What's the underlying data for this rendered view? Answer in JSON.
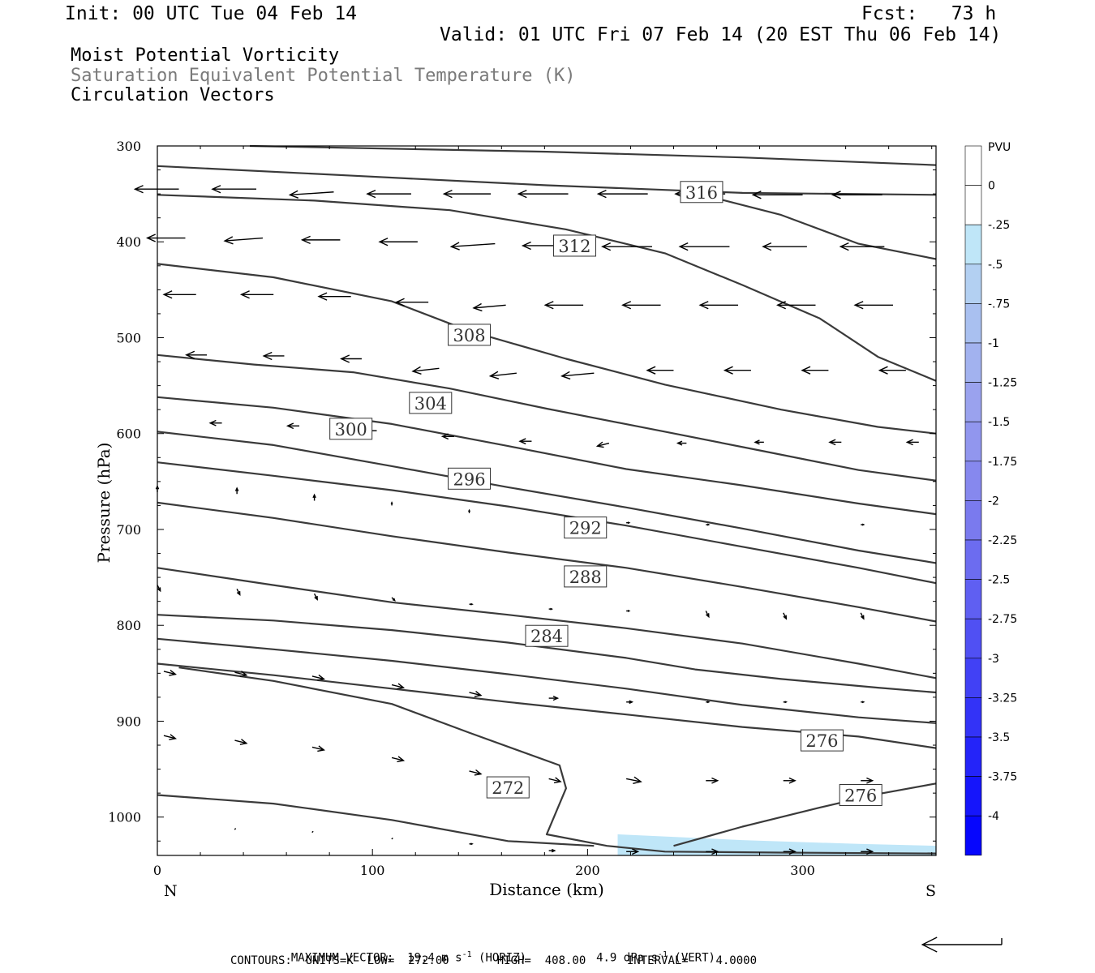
{
  "header": {
    "init": "Init: 00 UTC Tue 04 Feb 14",
    "fcst": "Fcst:   73 h",
    "valid": "Valid: 01 UTC Fri 07 Feb 14 (20 EST Thu 06 Feb 14)",
    "field1": "Moist Potential Vorticity",
    "field2": "Saturation Equivalent Potential Temperature (K)",
    "field3": "Circulation Vectors"
  },
  "footer": {
    "line1_a": "MAXIMUM VECTOR:  19.4 m s",
    "line1_a_sup": "-1",
    "line1_b": " (HORIZ)",
    "line1_c": "4.9 dPa s",
    "line1_c_sup": "-1",
    "line1_d": " (VERT)",
    "line2": "CONTOURS:  UNITS=K  LOW=  272.00       HIGH=  408.00      INTERVAL=    4.0000"
  },
  "chart_data": {
    "type": "contour",
    "xlabel": "Distance (km)",
    "ylabel": "Pressure (hPa)",
    "xlim": [
      0,
      362
    ],
    "ylim": [
      300,
      1040
    ],
    "x_ticks": [
      0,
      100,
      200,
      300
    ],
    "y_ticks": [
      300,
      400,
      500,
      600,
      700,
      800,
      900,
      1000
    ],
    "x_end_labels": {
      "left": "N",
      "right": "S"
    },
    "colorbar": {
      "title": "PVU",
      "labels": [
        "0",
        "-.25",
        "-.5",
        "-.75",
        "-1",
        "-1.25",
        "-1.5",
        "-1.75",
        "-2",
        "-2.25",
        "-2.5",
        "-2.75",
        "-3",
        "-3.25",
        "-3.5",
        "-3.75",
        "-4"
      ],
      "colors": [
        "#ffffff",
        "#ffffff",
        "#bfe6f8",
        "#b3d0f2",
        "#a9c0f0",
        "#a2b2ef",
        "#9aa2ee",
        "#9196ee",
        "#8688ee",
        "#7a7aee",
        "#6c6cf0",
        "#5f5ff2",
        "#5050f3",
        "#4141f5",
        "#3333f7",
        "#2424f9",
        "#1515fb",
        "#0606fd"
      ]
    },
    "contour_labels": [
      {
        "text": "316",
        "x": 253,
        "p": 348
      },
      {
        "text": "312",
        "x": 194,
        "p": 404
      },
      {
        "text": "308",
        "x": 145,
        "p": 497
      },
      {
        "text": "304",
        "x": 127,
        "p": 568
      },
      {
        "text": "300",
        "x": 90,
        "p": 595
      },
      {
        "text": "296",
        "x": 145,
        "p": 647
      },
      {
        "text": "292",
        "x": 199,
        "p": 698
      },
      {
        "text": "288",
        "x": 199,
        "p": 749
      },
      {
        "text": "284",
        "x": 181,
        "p": 811
      },
      {
        "text": "276",
        "x": 309,
        "p": 920
      },
      {
        "text": "272",
        "x": 163,
        "p": 969
      },
      {
        "text": "276",
        "x": 327,
        "p": 977
      }
    ],
    "contours": [
      [
        [
          43,
          300
        ],
        [
          181,
          306
        ],
        [
          272,
          312
        ],
        [
          362,
          320
        ]
      ],
      [
        [
          0,
          321
        ],
        [
          91,
          331
        ],
        [
          181,
          341
        ],
        [
          272,
          349
        ],
        [
          362,
          351
        ]
      ],
      [
        [
          0,
          351
        ],
        [
          73,
          357
        ],
        [
          136,
          367
        ],
        [
          190,
          387
        ],
        [
          236,
          412
        ],
        [
          272,
          445
        ],
        [
          308,
          480
        ],
        [
          335,
          520
        ],
        [
          362,
          545
        ]
      ],
      [
        [
          250,
          349
        ],
        [
          290,
          372
        ],
        [
          326,
          402
        ],
        [
          362,
          418
        ]
      ],
      [
        [
          0,
          423
        ],
        [
          54,
          437
        ],
        [
          109,
          462
        ],
        [
          145,
          493
        ],
        [
          190,
          522
        ],
        [
          236,
          549
        ],
        [
          290,
          575
        ],
        [
          335,
          593
        ],
        [
          362,
          600
        ]
      ],
      [
        [
          0,
          518
        ],
        [
          45,
          528
        ],
        [
          91,
          536
        ],
        [
          136,
          553
        ],
        [
          181,
          574
        ],
        [
          236,
          598
        ],
        [
          281,
          618
        ],
        [
          326,
          638
        ],
        [
          362,
          649
        ]
      ],
      [
        [
          0,
          562
        ],
        [
          54,
          573
        ],
        [
          109,
          590
        ],
        [
          163,
          613
        ],
        [
          218,
          637
        ],
        [
          272,
          654
        ],
        [
          326,
          673
        ],
        [
          362,
          684
        ]
      ],
      [
        [
          0,
          598
        ],
        [
          54,
          612
        ],
        [
          109,
          634
        ],
        [
          163,
          656
        ],
        [
          218,
          677
        ],
        [
          272,
          699
        ],
        [
          326,
          722
        ],
        [
          362,
          735
        ]
      ],
      [
        [
          0,
          630
        ],
        [
          54,
          644
        ],
        [
          109,
          659
        ],
        [
          163,
          676
        ],
        [
          218,
          696
        ],
        [
          272,
          718
        ],
        [
          326,
          740
        ],
        [
          362,
          756
        ]
      ],
      [
        [
          0,
          672
        ],
        [
          54,
          688
        ],
        [
          109,
          707
        ],
        [
          163,
          724
        ],
        [
          218,
          740
        ],
        [
          272,
          760
        ],
        [
          326,
          781
        ],
        [
          362,
          796
        ]
      ],
      [
        [
          0,
          740
        ],
        [
          54,
          758
        ],
        [
          109,
          776
        ],
        [
          163,
          789
        ],
        [
          218,
          803
        ],
        [
          272,
          819
        ],
        [
          326,
          840
        ],
        [
          362,
          855
        ]
      ],
      [
        [
          0,
          789
        ],
        [
          54,
          795
        ],
        [
          109,
          805
        ],
        [
          163,
          818
        ],
        [
          218,
          834
        ],
        [
          250,
          846
        ],
        [
          290,
          856
        ],
        [
          335,
          865
        ],
        [
          362,
          870
        ]
      ],
      [
        [
          0,
          814
        ],
        [
          54,
          825
        ],
        [
          109,
          837
        ],
        [
          163,
          851
        ],
        [
          218,
          866
        ],
        [
          272,
          883
        ],
        [
          326,
          896
        ],
        [
          362,
          902
        ]
      ],
      [
        [
          0,
          840
        ],
        [
          54,
          852
        ],
        [
          109,
          866
        ],
        [
          163,
          880
        ],
        [
          218,
          893
        ],
        [
          272,
          906
        ],
        [
          326,
          916
        ],
        [
          362,
          928
        ]
      ],
      [
        [
          10,
          844
        ],
        [
          54,
          858
        ],
        [
          109,
          882
        ],
        [
          145,
          912
        ],
        [
          187,
          946
        ],
        [
          190,
          970
        ],
        [
          181,
          1018
        ],
        [
          209,
          1030
        ],
        [
          236,
          1036
        ],
        [
          290,
          1037
        ],
        [
          362,
          1038
        ]
      ],
      [
        [
          0,
          977
        ],
        [
          54,
          986
        ],
        [
          109,
          1003
        ],
        [
          163,
          1025
        ],
        [
          203,
          1030
        ]
      ],
      [
        [
          240,
          1030
        ],
        [
          272,
          1010
        ],
        [
          308,
          990
        ],
        [
          335,
          976
        ],
        [
          362,
          965
        ]
      ]
    ],
    "pv_region": [
      [
        214,
        1018
      ],
      [
        272,
        1024
      ],
      [
        326,
        1028
      ],
      [
        362,
        1030
      ],
      [
        362,
        1040
      ],
      [
        214,
        1040
      ]
    ],
    "vectors": [
      {
        "x": 10,
        "p": 345,
        "u": -15,
        "w": 0
      },
      {
        "x": 46,
        "p": 345,
        "u": -15,
        "w": 0
      },
      {
        "x": 82,
        "p": 348,
        "u": -15,
        "w": 1
      },
      {
        "x": 118,
        "p": 350,
        "u": -15,
        "w": 0
      },
      {
        "x": 155,
        "p": 350,
        "u": -16,
        "w": 0
      },
      {
        "x": 191,
        "p": 350,
        "u": -17,
        "w": 0
      },
      {
        "x": 228,
        "p": 350,
        "u": -17,
        "w": 0
      },
      {
        "x": 264,
        "p": 350,
        "u": -17,
        "w": 0
      },
      {
        "x": 300,
        "p": 351,
        "u": -17,
        "w": 0
      },
      {
        "x": 337,
        "p": 351,
        "u": -17,
        "w": 0
      },
      {
        "x": 13,
        "p": 396,
        "u": -13,
        "w": 0
      },
      {
        "x": 49,
        "p": 396,
        "u": -13,
        "w": 1
      },
      {
        "x": 85,
        "p": 398,
        "u": -13,
        "w": 0
      },
      {
        "x": 121,
        "p": 400,
        "u": -13,
        "w": 0
      },
      {
        "x": 157,
        "p": 402,
        "u": -15,
        "w": 1
      },
      {
        "x": 193,
        "p": 404,
        "u": -17,
        "w": 0
      },
      {
        "x": 230,
        "p": 405,
        "u": -17,
        "w": 0
      },
      {
        "x": 266,
        "p": 405,
        "u": -17,
        "w": 0
      },
      {
        "x": 302,
        "p": 405,
        "u": -15,
        "w": 0
      },
      {
        "x": 338,
        "p": 405,
        "u": -15,
        "w": 0
      },
      {
        "x": 18,
        "p": 455,
        "u": -11,
        "w": 0
      },
      {
        "x": 54,
        "p": 455,
        "u": -11,
        "w": 0
      },
      {
        "x": 90,
        "p": 457,
        "u": -11,
        "w": 0
      },
      {
        "x": 126,
        "p": 463,
        "u": -11,
        "w": 0
      },
      {
        "x": 162,
        "p": 466,
        "u": -11,
        "w": 1
      },
      {
        "x": 198,
        "p": 466,
        "u": -13,
        "w": 0
      },
      {
        "x": 234,
        "p": 466,
        "u": -13,
        "w": 0
      },
      {
        "x": 270,
        "p": 466,
        "u": -13,
        "w": 0
      },
      {
        "x": 306,
        "p": 466,
        "u": -13,
        "w": 0
      },
      {
        "x": 342,
        "p": 466,
        "u": -13,
        "w": 0
      },
      {
        "x": 23,
        "p": 518,
        "u": -7,
        "w": 0
      },
      {
        "x": 59,
        "p": 519,
        "u": -7,
        "w": 0
      },
      {
        "x": 95,
        "p": 522,
        "u": -7,
        "w": 0
      },
      {
        "x": 131,
        "p": 532,
        "u": -9,
        "w": 1
      },
      {
        "x": 167,
        "p": 537,
        "u": -9,
        "w": 1
      },
      {
        "x": 203,
        "p": 537,
        "u": -11,
        "w": 1
      },
      {
        "x": 240,
        "p": 534,
        "u": -9,
        "w": 0
      },
      {
        "x": 276,
        "p": 534,
        "u": -9,
        "w": 0
      },
      {
        "x": 312,
        "p": 534,
        "u": -9,
        "w": 0
      },
      {
        "x": 348,
        "p": 534,
        "u": -9,
        "w": 0
      },
      {
        "x": 30,
        "p": 589,
        "u": -4,
        "w": 0
      },
      {
        "x": 66,
        "p": 592,
        "u": -4,
        "w": 0
      },
      {
        "x": 102,
        "p": 597,
        "u": -4,
        "w": 0
      },
      {
        "x": 138,
        "p": 603,
        "u": -4,
        "w": 0
      },
      {
        "x": 174,
        "p": 608,
        "u": -4,
        "w": 0
      },
      {
        "x": 210,
        "p": 610,
        "u": -4,
        "w": 1
      },
      {
        "x": 246,
        "p": 610,
        "u": -3,
        "w": 0
      },
      {
        "x": 282,
        "p": 609,
        "u": -3,
        "w": 0
      },
      {
        "x": 318,
        "p": 609,
        "u": -4,
        "w": 0
      },
      {
        "x": 354,
        "p": 609,
        "u": -4,
        "w": 0
      },
      {
        "x": 0,
        "p": 661,
        "u": 0,
        "w": -2
      },
      {
        "x": 37,
        "p": 663,
        "u": 0,
        "w": -2
      },
      {
        "x": 73,
        "p": 670,
        "u": 0,
        "w": -2
      },
      {
        "x": 109,
        "p": 675,
        "u": 0,
        "w": -1
      },
      {
        "x": 145,
        "p": 683,
        "u": 0,
        "w": -1
      },
      {
        "x": 218,
        "p": 693,
        "u": 1,
        "w": 0
      },
      {
        "x": 255,
        "p": 695,
        "u": 1,
        "w": 0
      },
      {
        "x": 327,
        "p": 695,
        "u": 1,
        "w": 0
      },
      {
        "x": 0,
        "p": 758,
        "u": 1,
        "w": 2
      },
      {
        "x": 37,
        "p": 762,
        "u": 1,
        "w": 2
      },
      {
        "x": 73,
        "p": 767,
        "u": 1,
        "w": 2
      },
      {
        "x": 109,
        "p": 771,
        "u": 1,
        "w": 1
      },
      {
        "x": 145,
        "p": 778,
        "u": 1,
        "w": 0
      },
      {
        "x": 182,
        "p": 783,
        "u": 1,
        "w": 0
      },
      {
        "x": 218,
        "p": 785,
        "u": 1,
        "w": 0
      },
      {
        "x": 255,
        "p": 785,
        "u": 1,
        "w": 2
      },
      {
        "x": 291,
        "p": 787,
        "u": 1,
        "w": 2
      },
      {
        "x": 327,
        "p": 787,
        "u": 1,
        "w": 2
      },
      {
        "x": 3,
        "p": 848,
        "u": 4,
        "w": 1
      },
      {
        "x": 36,
        "p": 849,
        "u": 4,
        "w": 1
      },
      {
        "x": 72,
        "p": 853,
        "u": 4,
        "w": 1
      },
      {
        "x": 109,
        "p": 862,
        "u": 4,
        "w": 1
      },
      {
        "x": 145,
        "p": 870,
        "u": 4,
        "w": 1
      },
      {
        "x": 182,
        "p": 876,
        "u": 3,
        "w": 0
      },
      {
        "x": 218,
        "p": 880,
        "u": 2,
        "w": 0
      },
      {
        "x": 255,
        "p": 880,
        "u": 1,
        "w": 0
      },
      {
        "x": 291,
        "p": 880,
        "u": 1,
        "w": 0
      },
      {
        "x": 327,
        "p": 880,
        "u": 1,
        "w": 0
      },
      {
        "x": 3,
        "p": 915,
        "u": 4,
        "w": 1
      },
      {
        "x": 36,
        "p": 920,
        "u": 4,
        "w": 1
      },
      {
        "x": 72,
        "p": 927,
        "u": 4,
        "w": 1
      },
      {
        "x": 109,
        "p": 938,
        "u": 4,
        "w": 1
      },
      {
        "x": 145,
        "p": 952,
        "u": 4,
        "w": 1
      },
      {
        "x": 182,
        "p": 960,
        "u": 4,
        "w": 1
      },
      {
        "x": 218,
        "p": 960,
        "u": 5,
        "w": 1
      },
      {
        "x": 255,
        "p": 962,
        "u": 4,
        "w": 0
      },
      {
        "x": 291,
        "p": 962,
        "u": 4,
        "w": 0
      },
      {
        "x": 327,
        "p": 962,
        "u": 4,
        "w": 0
      },
      {
        "x": 36,
        "p": 1012,
        "u": 0,
        "w": 0
      },
      {
        "x": 72,
        "p": 1015,
        "u": 0,
        "w": 0
      },
      {
        "x": 109,
        "p": 1022,
        "u": 0,
        "w": 0
      },
      {
        "x": 145,
        "p": 1028,
        "u": 1,
        "w": 0
      },
      {
        "x": 182,
        "p": 1035,
        "u": 2,
        "w": 0
      },
      {
        "x": 218,
        "p": 1036,
        "u": 4,
        "w": 0
      },
      {
        "x": 255,
        "p": 1036,
        "u": 4,
        "w": 0
      },
      {
        "x": 291,
        "p": 1036,
        "u": 4,
        "w": 0
      },
      {
        "x": 327,
        "p": 1036,
        "u": 4,
        "w": 0
      }
    ],
    "reference_vector": {
      "u": -19.4
    }
  }
}
